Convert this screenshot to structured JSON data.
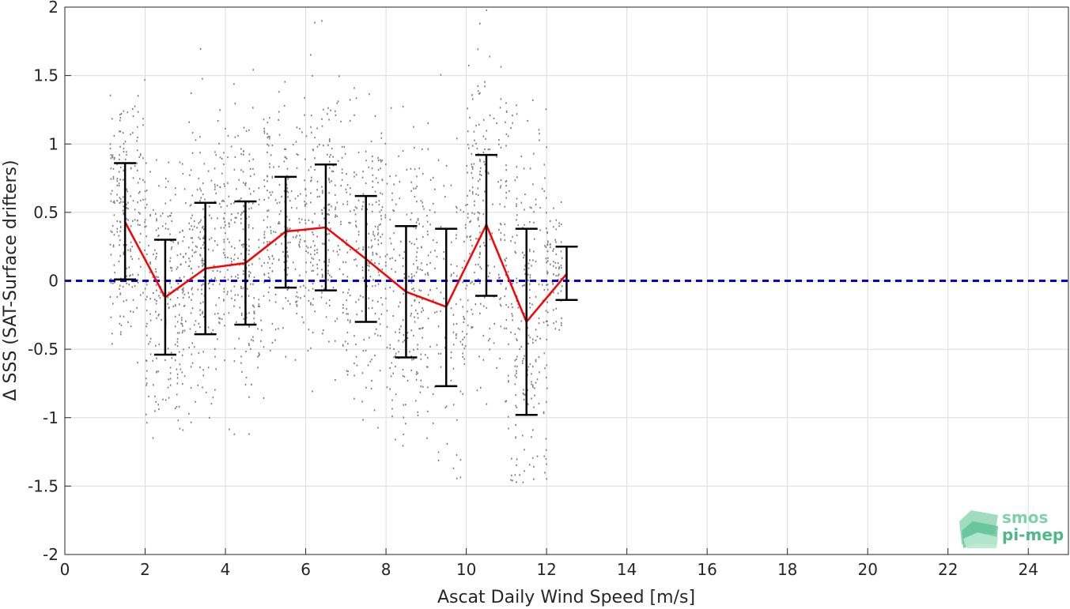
{
  "chart_data": {
    "type": "scatter",
    "xlabel": "Ascat Daily Wind Speed [m/s]",
    "ylabel": "Δ SSS (SAT-Surface drifters)",
    "xlim": [
      0,
      25
    ],
    "ylim": [
      -2,
      2
    ],
    "xticks": [
      0,
      2,
      4,
      6,
      8,
      10,
      12,
      14,
      16,
      18,
      20,
      22,
      24
    ],
    "xtick_labels": [
      "0",
      "2",
      "4",
      "6",
      "8",
      "10",
      "12",
      "14",
      "16",
      "18",
      "20",
      "22",
      "24"
    ],
    "yticks": [
      2,
      1.5,
      1,
      0.5,
      0,
      -0.5,
      -1,
      -1.5,
      -2
    ],
    "ytick_labels": [
      "2",
      "1.5",
      "1",
      "0.5",
      "0",
      "-0.5",
      "-1",
      "-1.5",
      "-2"
    ],
    "grid": true,
    "zero_line": {
      "y": 0,
      "color": "#0000dd",
      "style": "dashed"
    },
    "binned_mean": {
      "color": "#ff0000",
      "x": [
        1.5,
        2.5,
        3.5,
        4.5,
        5.5,
        6.5,
        7.5,
        8.5,
        9.5,
        10.5,
        11.5,
        12.5
      ],
      "y": [
        0.43,
        -0.12,
        0.09,
        0.13,
        0.36,
        0.39,
        0.16,
        -0.08,
        -0.19,
        0.41,
        -0.3,
        0.05
      ]
    },
    "error_bars": {
      "color": "#000000",
      "x": [
        1.5,
        2.5,
        3.5,
        4.5,
        5.5,
        6.5,
        7.5,
        8.5,
        9.5,
        10.5,
        11.5,
        12.5
      ],
      "low": [
        0.01,
        -0.54,
        -0.39,
        -0.32,
        -0.05,
        -0.07,
        -0.3,
        -0.56,
        -0.77,
        -0.11,
        -0.98,
        -0.14
      ],
      "high": [
        0.86,
        0.3,
        0.57,
        0.58,
        0.76,
        0.85,
        0.62,
        0.4,
        0.38,
        0.92,
        0.38,
        0.25
      ]
    },
    "scatter_points": {
      "color": "#808080",
      "x_range": [
        1.1,
        12.4
      ],
      "y_range": [
        -1.47,
        1.99
      ]
    }
  },
  "logo": {
    "line1": "smos",
    "line2": "pi-mep",
    "colors": [
      "#4fb88a",
      "#7fd1a8",
      "#a8e2c4"
    ]
  }
}
